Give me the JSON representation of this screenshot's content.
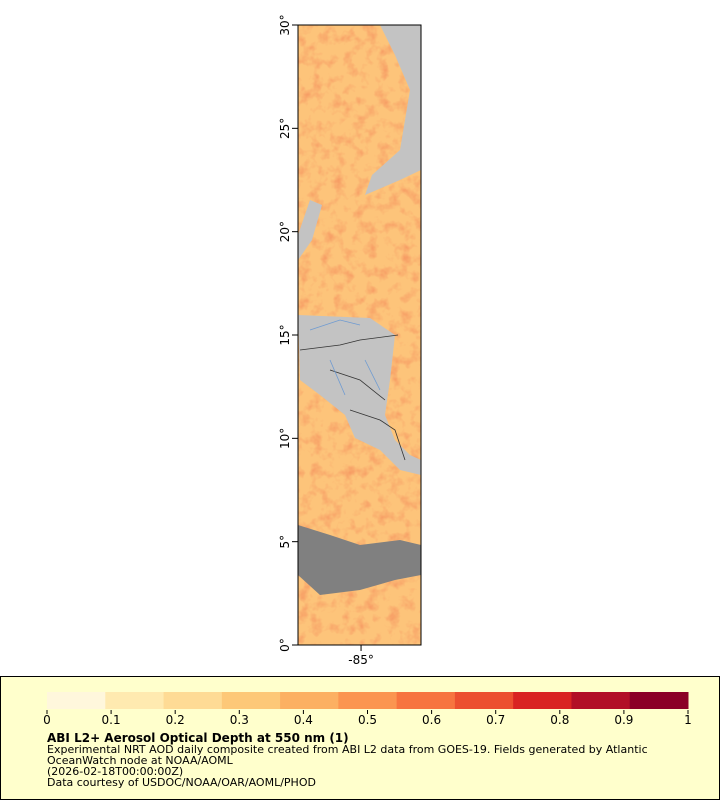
{
  "map": {
    "ylim": [
      0,
      30
    ],
    "xlim": [
      -88.05,
      -82.1
    ],
    "yticks": [
      {
        "value": 0,
        "label": "0°"
      },
      {
        "value": 5,
        "label": "5°"
      },
      {
        "value": 10,
        "label": "10°"
      },
      {
        "value": 15,
        "label": "15°"
      },
      {
        "value": 20,
        "label": "20°"
      },
      {
        "value": 25,
        "label": "25°"
      },
      {
        "value": 30,
        "label": "30°"
      }
    ],
    "xticks": [
      {
        "value": -85,
        "label": "-85°"
      }
    ]
  },
  "legend": {
    "title": "ABI L2+ Aerosol Optical Depth at 550 nm (1)",
    "range": [
      0,
      1
    ],
    "ticks": [
      0,
      0.1,
      0.2,
      0.3,
      0.4,
      0.5,
      0.6,
      0.7,
      0.8,
      0.9,
      1
    ],
    "colors": [
      "#fff7dc",
      "#ffeab0",
      "#fedb95",
      "#fdc878",
      "#fcb062",
      "#fb9550",
      "#f7743f",
      "#ec4f2f",
      "#d92322",
      "#b20f26",
      "#8b0026"
    ]
  },
  "caption": [
    "Experimental NRT AOD daily composite created from ABI L2 data from GOES-19. Fields generated by Atlantic",
    "OceanWatch node at NOAA/AOML",
    "(2026-02-18T00:00:00Z)",
    "Data courtesy of USDOC/NOAA/OAR/AOML/PHOD"
  ]
}
